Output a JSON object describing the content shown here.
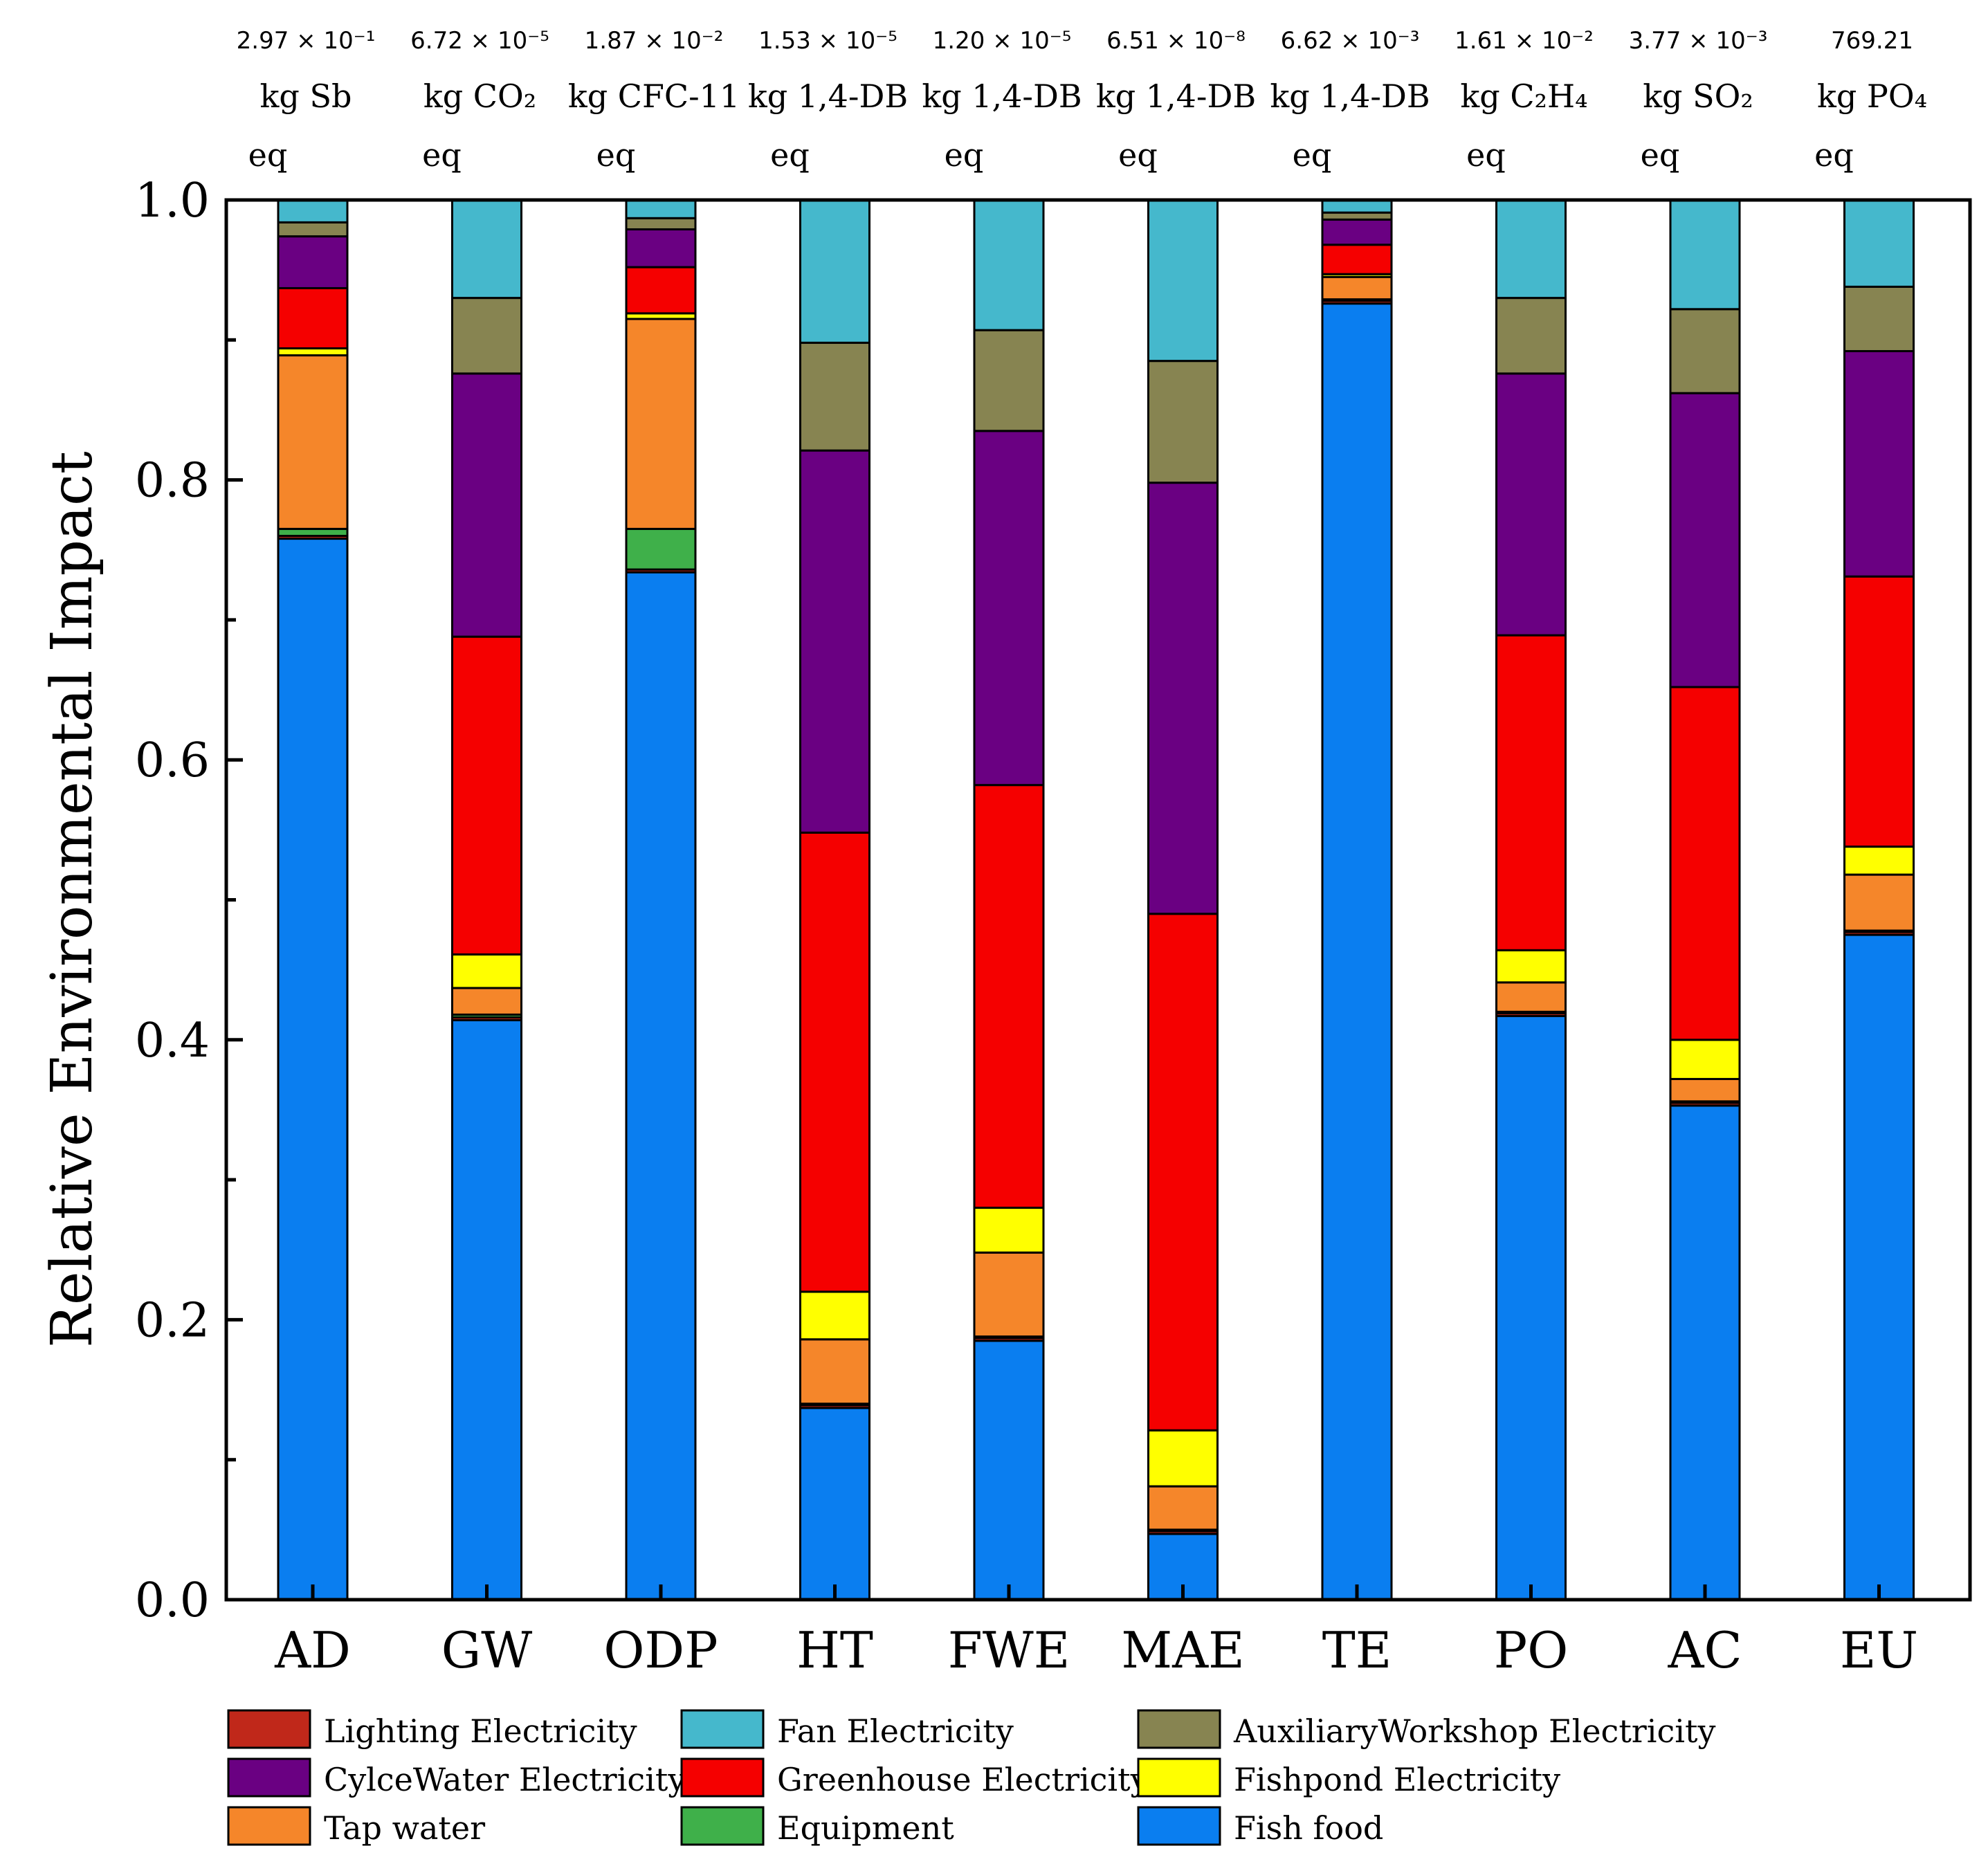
{
  "chart_data": {
    "type": "bar",
    "stacked": true,
    "ylabel": "Relative Environmental Impact",
    "xlabel": "",
    "ylim": [
      0,
      1.0
    ],
    "yticks": [
      "0.0",
      "0.2",
      "0.4",
      "0.6",
      "0.8",
      "1.0"
    ],
    "categories": [
      "AD",
      "GW",
      "ODP",
      "HT",
      "FWE",
      "MAE",
      "TE",
      "PO",
      "AC",
      "EU"
    ],
    "annotations": [
      {
        "value": "2.97 × 10⁻¹",
        "unit": "kg Sb",
        "suffix": "eq"
      },
      {
        "value": "6.72 × 10⁻⁵",
        "unit": "kg CO₂",
        "suffix": "eq"
      },
      {
        "value": "1.87 × 10⁻²",
        "unit": "kg CFC-11",
        "suffix": "eq"
      },
      {
        "value": "1.53 × 10⁻⁵",
        "unit": "kg 1,4-DB",
        "suffix": "eq"
      },
      {
        "value": "1.20 × 10⁻⁵",
        "unit": "kg 1,4-DB",
        "suffix": "eq"
      },
      {
        "value": "6.51 × 10⁻⁸",
        "unit": "kg 1,4-DB",
        "suffix": "eq"
      },
      {
        "value": "6.62 × 10⁻³",
        "unit": "kg 1,4-DB",
        "suffix": "eq"
      },
      {
        "value": "1.61 × 10⁻²",
        "unit": "kg C₂H₄",
        "suffix": "eq"
      },
      {
        "value": "3.77 × 10⁻³",
        "unit": "kg SO₂",
        "suffix": "eq"
      },
      {
        "value": "769.21",
        "unit": "kg PO₄",
        "suffix": "eq"
      }
    ],
    "series": [
      {
        "name": "Fish food",
        "color": "#0a7ef0",
        "values": [
          0.758,
          0.414,
          0.734,
          0.137,
          0.185,
          0.047,
          0.926,
          0.417,
          0.353,
          0.475
        ]
      },
      {
        "name": "Lighting Electricity",
        "color": "#c0281a",
        "values": [
          0.002,
          0.002,
          0.002,
          0.002,
          0.002,
          0.002,
          0.002,
          0.002,
          0.002,
          0.002
        ]
      },
      {
        "name": "Equipment",
        "color": "#3fb04a",
        "values": [
          0.005,
          0.002,
          0.029,
          0.001,
          0.001,
          0.001,
          0.001,
          0.001,
          0.001,
          0.001
        ]
      },
      {
        "name": "Tap water",
        "color": "#f5862a",
        "values": [
          0.124,
          0.019,
          0.15,
          0.046,
          0.06,
          0.031,
          0.016,
          0.021,
          0.016,
          0.04
        ]
      },
      {
        "name": "Fishpond Electricity",
        "color": "#ffff00",
        "values": [
          0.005,
          0.024,
          0.004,
          0.034,
          0.032,
          0.04,
          0.002,
          0.023,
          0.028,
          0.02
        ]
      },
      {
        "name": "Greenhouse Electricity",
        "color": "#f50000",
        "values": [
          0.043,
          0.227,
          0.033,
          0.328,
          0.302,
          0.369,
          0.021,
          0.225,
          0.252,
          0.193
        ]
      },
      {
        "name": "CylceWater Electricity",
        "color": "#6a0082",
        "values": [
          0.037,
          0.188,
          0.027,
          0.273,
          0.253,
          0.308,
          0.018,
          0.187,
          0.21,
          0.161
        ]
      },
      {
        "name": "AuxiliaryWorkshop Electricity",
        "color": "#878451",
        "values": [
          0.01,
          0.054,
          0.008,
          0.077,
          0.072,
          0.087,
          0.005,
          0.054,
          0.06,
          0.046
        ]
      },
      {
        "name": "Fan Electricity",
        "color": "#45b8cc",
        "values": [
          0.016,
          0.07,
          0.013,
          0.102,
          0.093,
          0.115,
          0.009,
          0.07,
          0.078,
          0.062
        ]
      }
    ],
    "legend": {
      "placement": "bottom",
      "entries": [
        {
          "name": "Lighting Electricity",
          "color": "#c0281a"
        },
        {
          "name": "Fan Electricity",
          "color": "#45b8cc"
        },
        {
          "name": "AuxiliaryWorkshop Electricity",
          "color": "#878451"
        },
        {
          "name": "CylceWater Electricity",
          "color": "#6a0082"
        },
        {
          "name": "Greenhouse Electricity",
          "color": "#f50000"
        },
        {
          "name": "Fishpond Electricity",
          "color": "#ffff00"
        },
        {
          "name": "Tap water",
          "color": "#f5862a"
        },
        {
          "name": "Equipment",
          "color": "#3fb04a"
        },
        {
          "name": "Fish food",
          "color": "#0a7ef0"
        }
      ]
    }
  }
}
